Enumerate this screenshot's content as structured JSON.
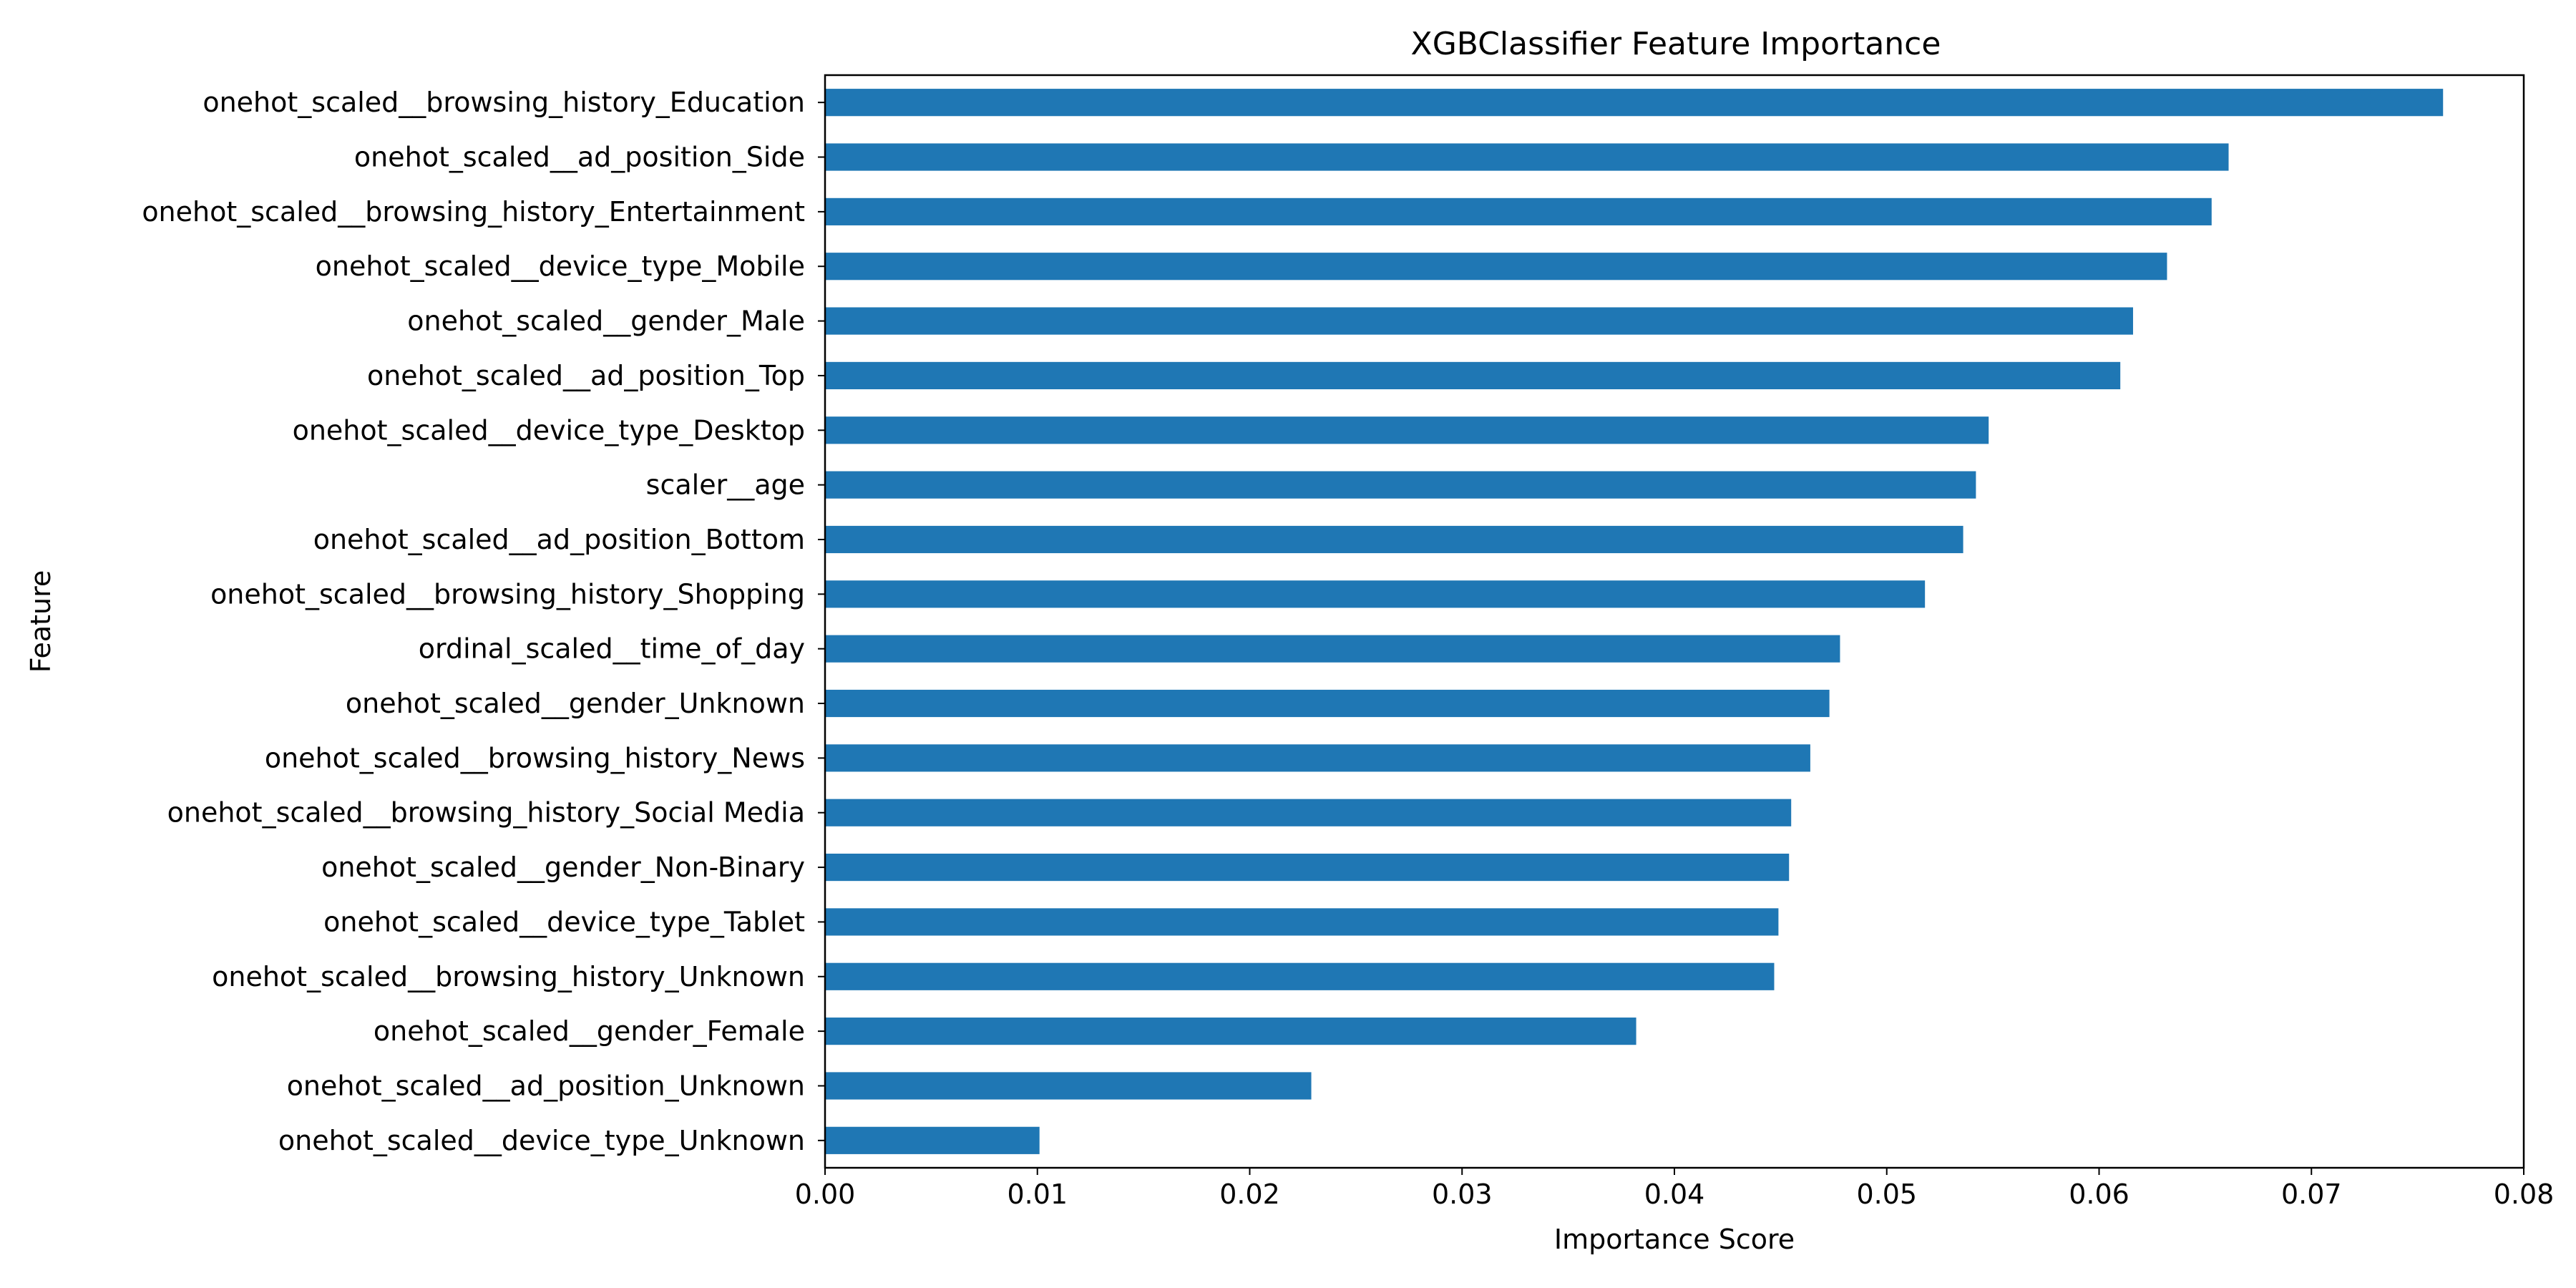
{
  "chart_data": {
    "type": "bar",
    "orientation": "horizontal",
    "title": "XGBClassifier Feature Importance",
    "xlabel": "Importance Score",
    "ylabel": "Feature",
    "xlim": [
      0.0,
      0.08
    ],
    "xticks": [
      "0.00",
      "0.01",
      "0.02",
      "0.03",
      "0.04",
      "0.05",
      "0.06",
      "0.07",
      "0.08"
    ],
    "grid": false,
    "bar_color": "#1f77b4",
    "categories": [
      "onehot_scaled__browsing_history_Education",
      "onehot_scaled__ad_position_Side",
      "onehot_scaled__browsing_history_Entertainment",
      "onehot_scaled__device_type_Mobile",
      "onehot_scaled__gender_Male",
      "onehot_scaled__ad_position_Top",
      "onehot_scaled__device_type_Desktop",
      "scaler__age",
      "onehot_scaled__ad_position_Bottom",
      "onehot_scaled__browsing_history_Shopping",
      "ordinal_scaled__time_of_day",
      "onehot_scaled__gender_Unknown",
      "onehot_scaled__browsing_history_News",
      "onehot_scaled__browsing_history_Social Media",
      "onehot_scaled__gender_Non-Binary",
      "onehot_scaled__device_type_Tablet",
      "onehot_scaled__browsing_history_Unknown",
      "onehot_scaled__gender_Female",
      "onehot_scaled__ad_position_Unknown",
      "onehot_scaled__device_type_Unknown"
    ],
    "values": [
      0.0762,
      0.0661,
      0.0653,
      0.0632,
      0.0616,
      0.061,
      0.0548,
      0.0542,
      0.0536,
      0.0518,
      0.0478,
      0.0473,
      0.0464,
      0.0455,
      0.0454,
      0.0449,
      0.0447,
      0.0382,
      0.0229,
      0.0101
    ]
  }
}
